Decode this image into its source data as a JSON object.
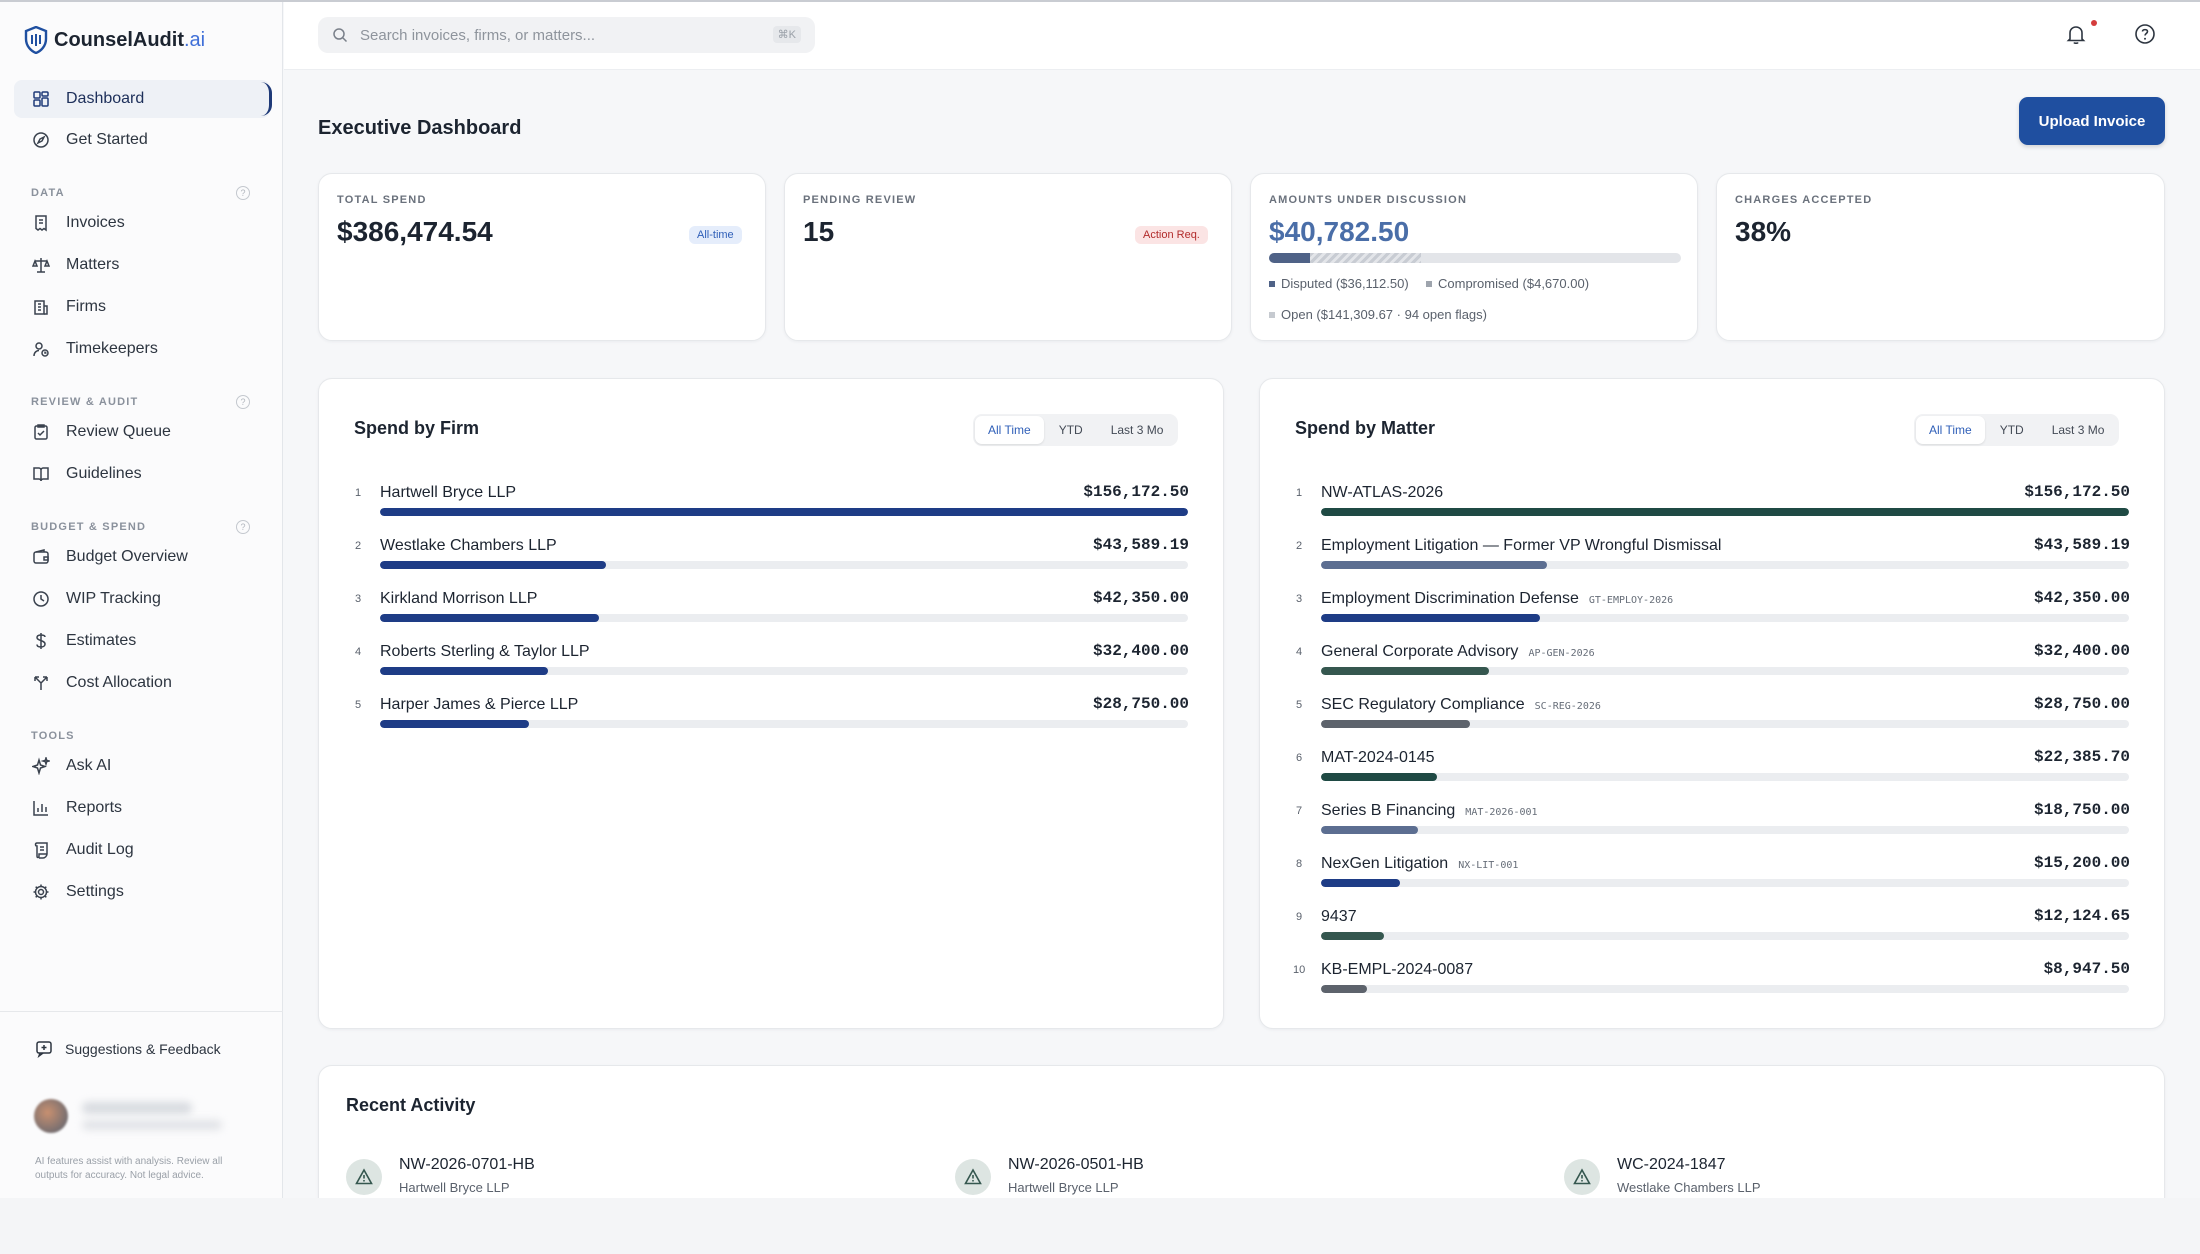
{
  "brand": {
    "name": "CounselAudit",
    "tld": ".ai"
  },
  "nav": {
    "top": [
      {
        "label": "Dashboard",
        "icon": "grid-icon",
        "active": true
      },
      {
        "label": "Get Started",
        "icon": "compass-icon"
      }
    ],
    "sections": [
      {
        "label": "DATA",
        "items": [
          {
            "label": "Invoices",
            "icon": "receipt-icon"
          },
          {
            "label": "Matters",
            "icon": "scale-icon"
          },
          {
            "label": "Firms",
            "icon": "building-icon"
          },
          {
            "label": "Timekeepers",
            "icon": "user-clock-icon"
          }
        ]
      },
      {
        "label": "REVIEW & AUDIT",
        "items": [
          {
            "label": "Review Queue",
            "icon": "clipboard-check-icon"
          },
          {
            "label": "Guidelines",
            "icon": "book-icon"
          }
        ]
      },
      {
        "label": "BUDGET & SPEND",
        "items": [
          {
            "label": "Budget Overview",
            "icon": "wallet-icon"
          },
          {
            "label": "WIP Tracking",
            "icon": "clock-icon"
          },
          {
            "label": "Estimates",
            "icon": "dollar-icon"
          },
          {
            "label": "Cost Allocation",
            "icon": "split-icon"
          }
        ]
      },
      {
        "label": "TOOLS",
        "items": [
          {
            "label": "Ask AI",
            "icon": "sparkles-icon"
          },
          {
            "label": "Reports",
            "icon": "bar-chart-icon"
          },
          {
            "label": "Audit Log",
            "icon": "scroll-icon"
          },
          {
            "label": "Settings",
            "icon": "gear-icon"
          }
        ]
      }
    ],
    "feedback": "Suggestions & Feedback",
    "disclaimer": "AI features assist with analysis. Review all outputs for accuracy. Not legal advice."
  },
  "topbar": {
    "search_placeholder": "Search invoices, firms, or matters...",
    "shortcut": "⌘K"
  },
  "page": {
    "title": "Executive Dashboard",
    "upload_label": "Upload Invoice"
  },
  "kpis": {
    "total_spend": {
      "label": "TOTAL SPEND",
      "value": "$386,474.54",
      "badge": "All-time"
    },
    "pending": {
      "label": "PENDING REVIEW",
      "value": "15",
      "badge": "Action Req."
    },
    "discussion": {
      "label": "AMOUNTS UNDER DISCUSSION",
      "value": "$40,782.50",
      "disputed": "Disputed ($36,112.50)",
      "compromised": "Compromised ($4,670.00)",
      "open": "Open ($141,309.67 · 94 open flags)",
      "bar_disputed_fraction": 0.1,
      "bar_compromised_fraction": 0.37
    },
    "accepted": {
      "label": "CHARGES ACCEPTED",
      "value": "38%"
    }
  },
  "filters": [
    "All Time",
    "YTD",
    "Last 3 Mo"
  ],
  "spend_by_firm": {
    "title": "Spend by Firm",
    "max": 156172.5,
    "rows": [
      {
        "rank": "1",
        "name": "Hartwell Bryce LLP",
        "amount": "$156,172.50",
        "value": 156172.5,
        "color": "#1e3c86"
      },
      {
        "rank": "2",
        "name": "Westlake Chambers LLP",
        "amount": "$43,589.19",
        "value": 43589.19,
        "color": "#1e3c86"
      },
      {
        "rank": "3",
        "name": "Kirkland Morrison LLP",
        "amount": "$42,350.00",
        "value": 42350.0,
        "color": "#1e3c86"
      },
      {
        "rank": "4",
        "name": "Roberts Sterling & Taylor LLP",
        "amount": "$32,400.00",
        "value": 32400.0,
        "color": "#1e3c86"
      },
      {
        "rank": "5",
        "name": "Harper James & Pierce LLP",
        "amount": "$28,750.00",
        "value": 28750.0,
        "color": "#1e3c86"
      }
    ]
  },
  "spend_by_matter": {
    "title": "Spend by Matter",
    "max": 156172.5,
    "rows": [
      {
        "rank": "1",
        "name": "NW-ATLAS-2026",
        "code": "",
        "amount": "$156,172.50",
        "value": 156172.5,
        "color": "#1f4a44"
      },
      {
        "rank": "2",
        "name": "Employment Litigation — Former VP Wrongful Dismissal",
        "code": "",
        "amount": "$43,589.19",
        "value": 43589.19,
        "color": "#5c6e91"
      },
      {
        "rank": "3",
        "name": "Employment Discrimination Defense",
        "code": "GT-EMPLOY-2026",
        "amount": "$42,350.00",
        "value": 42350.0,
        "color": "#1e3c86"
      },
      {
        "rank": "4",
        "name": "General Corporate Advisory",
        "code": "AP-GEN-2026",
        "amount": "$32,400.00",
        "value": 32400.0,
        "color": "#35574f"
      },
      {
        "rank": "5",
        "name": "SEC Regulatory Compliance",
        "code": "SC-REG-2026",
        "amount": "$28,750.00",
        "value": 28750.0,
        "color": "#5d636c"
      },
      {
        "rank": "6",
        "name": "MAT-2024-0145",
        "code": "",
        "amount": "$22,385.70",
        "value": 22385.7,
        "color": "#1f4a44"
      },
      {
        "rank": "7",
        "name": "Series B Financing",
        "code": "MAT-2026-001",
        "amount": "$18,750.00",
        "value": 18750.0,
        "color": "#5c6e91"
      },
      {
        "rank": "8",
        "name": "NexGen Litigation",
        "code": "NX-LIT-001",
        "amount": "$15,200.00",
        "value": 15200.0,
        "color": "#1e3c86"
      },
      {
        "rank": "9",
        "name": "9437",
        "code": "",
        "amount": "$12,124.65",
        "value": 12124.65,
        "color": "#35574f"
      },
      {
        "rank": "10",
        "name": "KB-EMPL-2024-0087",
        "code": "",
        "amount": "$8,947.50",
        "value": 8947.5,
        "color": "#5d636c"
      }
    ]
  },
  "activity": {
    "title": "Recent Activity",
    "items": [
      {
        "id": "NW-2026-0701-HB",
        "firm": "Hartwell Bryce LLP"
      },
      {
        "id": "NW-2026-0501-HB",
        "firm": "Hartwell Bryce LLP"
      },
      {
        "id": "WC-2024-1847",
        "firm": "Westlake Chambers LLP"
      }
    ]
  }
}
